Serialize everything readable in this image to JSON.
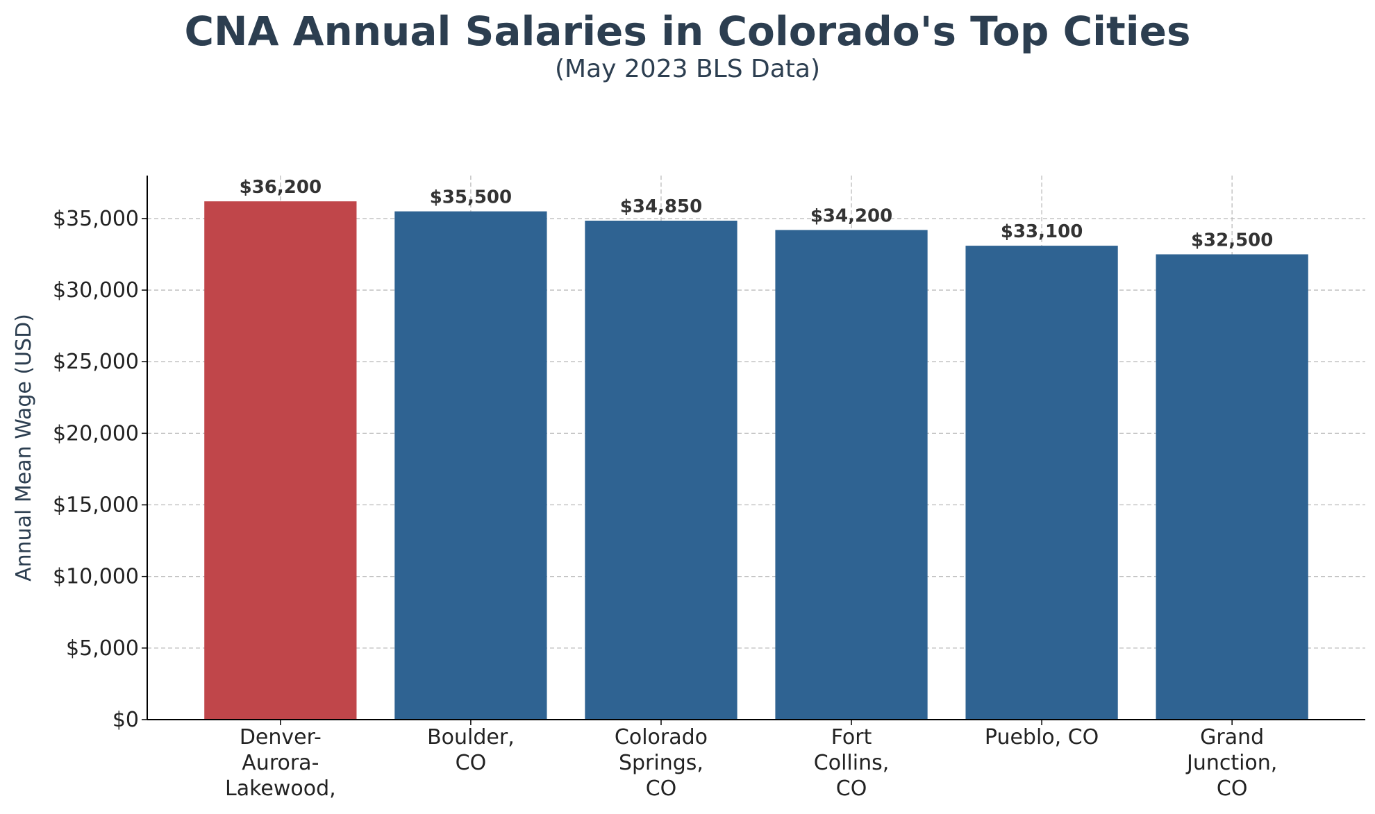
{
  "chart_data": {
    "type": "bar",
    "title": "CNA Annual Salaries in Colorado's Top Cities",
    "subtitle": "(May 2023 BLS Data)",
    "xlabel": "",
    "ylabel": "Annual Mean Wage (USD)",
    "ylim": [
      0,
      38000
    ],
    "yticks": [
      0,
      5000,
      10000,
      15000,
      20000,
      25000,
      30000,
      35000
    ],
    "ytick_labels": [
      "$0",
      "$5,000",
      "$10,000",
      "$15,000",
      "$20,000",
      "$25,000",
      "$30,000",
      "$35,000"
    ],
    "grid": true,
    "categories": [
      [
        "Denver-",
        "Aurora-",
        "Lakewood,"
      ],
      [
        "Boulder,",
        "CO"
      ],
      [
        "Colorado",
        "Springs,",
        "CO"
      ],
      [
        "Fort",
        "Collins,",
        "CO"
      ],
      [
        "Pueblo, CO"
      ],
      [
        "Grand",
        "Junction,",
        "CO"
      ]
    ],
    "values": [
      36200,
      35500,
      34850,
      34200,
      33100,
      32500
    ],
    "value_labels": [
      "$36,200",
      "$35,500",
      "$34,850",
      "$34,200",
      "$33,100",
      "$32,500"
    ],
    "colors": [
      "#c0464a",
      "#2f6392",
      "#2f6392",
      "#2f6392",
      "#2f6392",
      "#2f6392"
    ],
    "highlight_color": "#c0464a",
    "bar_color": "#2f6392",
    "gridline_color": "#bbbbbb",
    "axis_color": "#000000"
  }
}
